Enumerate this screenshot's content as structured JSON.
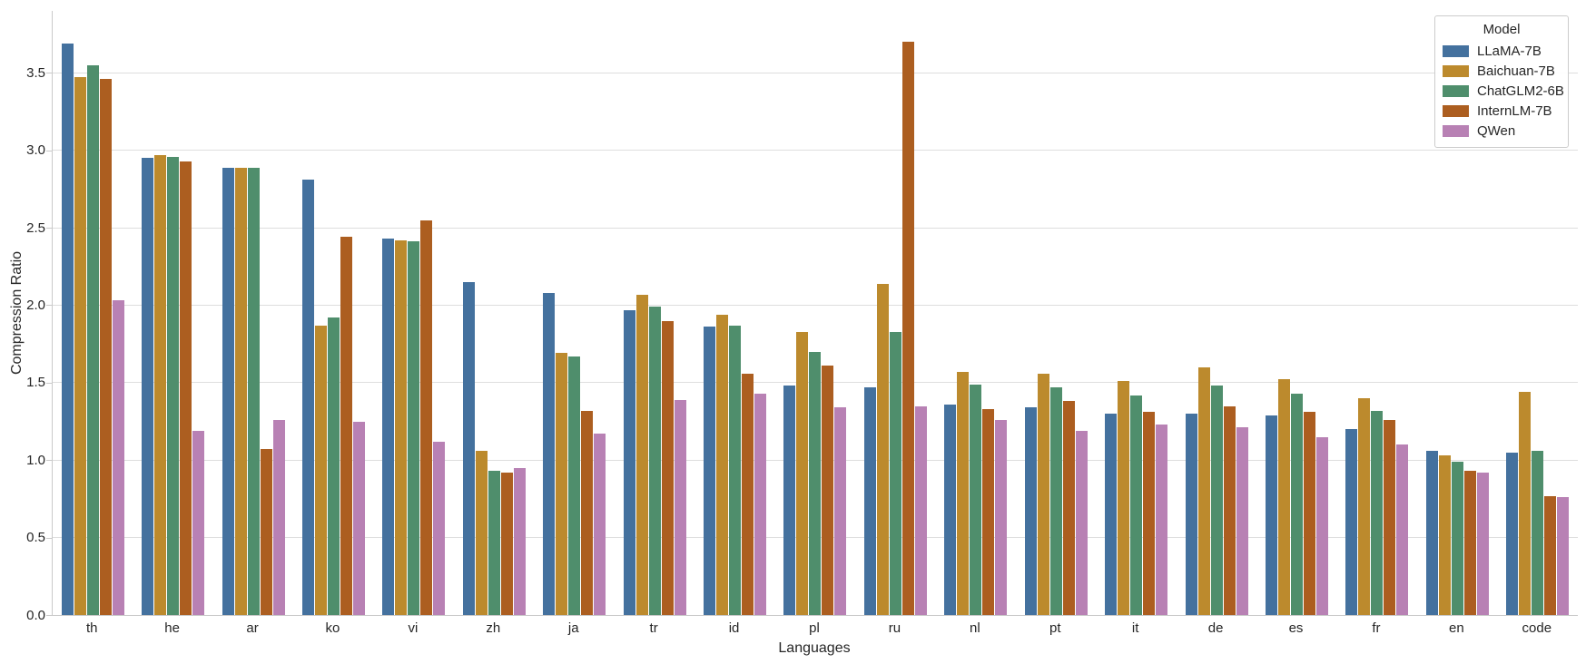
{
  "figure": {
    "background": "#ffffff",
    "grid_color": "#dedede",
    "spine_color": "#c9c9c9",
    "text_color": "#262626"
  },
  "chart_data": {
    "type": "bar",
    "title": "",
    "xlabel": "Languages",
    "ylabel": "Compression Ratio",
    "ylim": [
      0,
      3.9
    ],
    "yticks": [
      0.0,
      0.5,
      1.0,
      1.5,
      2.0,
      2.5,
      3.0,
      3.5
    ],
    "grid": "horizontal",
    "legend": {
      "title": "Model",
      "position": "upper right"
    },
    "categories": [
      "th",
      "he",
      "ar",
      "ko",
      "vi",
      "zh",
      "ja",
      "tr",
      "id",
      "pl",
      "ru",
      "nl",
      "pt",
      "it",
      "de",
      "es",
      "fr",
      "en",
      "code"
    ],
    "series": [
      {
        "name": "LLaMA-7B",
        "color": "#44719E",
        "values": [
          3.69,
          2.95,
          2.89,
          2.81,
          2.43,
          2.15,
          2.08,
          1.97,
          1.86,
          1.48,
          1.47,
          1.36,
          1.34,
          1.3,
          1.3,
          1.29,
          1.2,
          1.06,
          1.05
        ]
      },
      {
        "name": "Baichuan-7B",
        "color": "#BC8A2D",
        "values": [
          3.47,
          2.97,
          2.89,
          1.87,
          2.42,
          1.06,
          1.69,
          2.07,
          1.94,
          1.83,
          2.14,
          1.57,
          1.56,
          1.51,
          1.6,
          1.52,
          1.4,
          1.03,
          1.44
        ]
      },
      {
        "name": "ChatGLM2-6B",
        "color": "#4F8E6C",
        "values": [
          3.55,
          2.96,
          2.89,
          1.92,
          2.41,
          0.93,
          1.67,
          1.99,
          1.87,
          1.7,
          1.83,
          1.49,
          1.47,
          1.42,
          1.48,
          1.43,
          1.32,
          0.99,
          1.06
        ]
      },
      {
        "name": "InternLM-7B",
        "color": "#AC5E20",
        "values": [
          3.46,
          2.93,
          1.07,
          2.44,
          2.55,
          0.92,
          1.32,
          1.9,
          1.56,
          1.61,
          3.7,
          1.33,
          1.38,
          1.31,
          1.35,
          1.31,
          1.26,
          0.93,
          0.77
        ]
      },
      {
        "name": "QWen",
        "color": "#B881B4",
        "values": [
          2.03,
          1.19,
          1.26,
          1.25,
          1.12,
          0.95,
          1.17,
          1.39,
          1.43,
          1.34,
          1.35,
          1.26,
          1.19,
          1.23,
          1.21,
          1.15,
          1.1,
          0.92,
          0.76
        ]
      }
    ]
  }
}
